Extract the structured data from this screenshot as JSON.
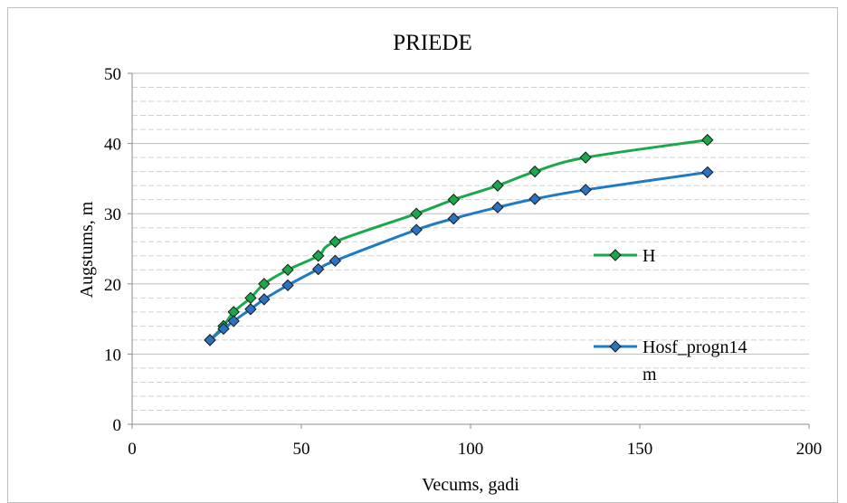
{
  "chart_data": {
    "type": "line",
    "title": "PRIEDE",
    "xlabel": "Vecums, gadi",
    "ylabel": "Augstums, m",
    "xlim": [
      0,
      200
    ],
    "ylim": [
      0,
      50
    ],
    "x_ticks": [
      "0",
      "50",
      "100",
      "150",
      "200"
    ],
    "y_ticks": [
      "0",
      "10",
      "20",
      "30",
      "40",
      "50"
    ],
    "grid": true,
    "minor_grid": true,
    "legend_position": "right",
    "series": [
      {
        "name": "H",
        "color": "#1aa84a",
        "marker": "diamond",
        "marker_color": "#1aa84a",
        "x": [
          23,
          27,
          30,
          35,
          39,
          46,
          55,
          60,
          84,
          95,
          108,
          119,
          134,
          170
        ],
        "y": [
          12,
          14,
          16,
          18,
          20,
          22,
          24,
          26,
          30,
          32,
          34,
          36,
          38,
          40.5
        ]
      },
      {
        "name": "Hosf_progn14 m",
        "color": "#1f7bc4",
        "marker": "diamond",
        "marker_color": "#2a72c2",
        "x": [
          23,
          27,
          30,
          35,
          39,
          46,
          55,
          60,
          84,
          95,
          108,
          119,
          134,
          170
        ],
        "y": [
          12,
          13.6,
          14.7,
          16.4,
          17.8,
          19.8,
          22.1,
          23.3,
          27.7,
          29.3,
          30.9,
          32.1,
          33.4,
          35.9
        ]
      }
    ],
    "legend": [
      {
        "label_line1": "H",
        "label_line2": ""
      },
      {
        "label_line1": "Hosf_progn14",
        "label_line2": "m"
      }
    ]
  }
}
